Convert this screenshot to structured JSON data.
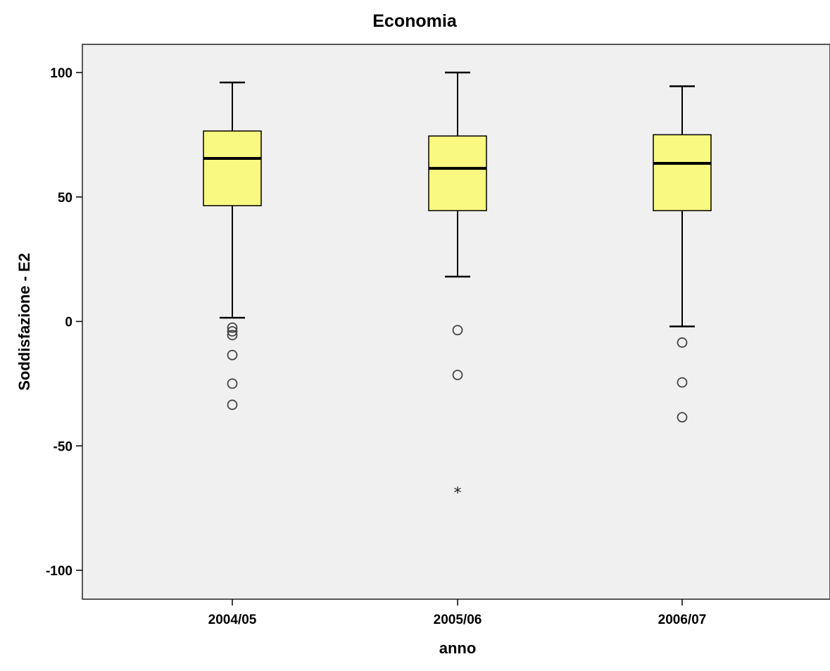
{
  "chart_data": {
    "type": "box",
    "title": "Economia",
    "xlabel": "anno",
    "ylabel": "Soddisfazione - E2",
    "ylim": [
      -111,
      111
    ],
    "yticks": [
      -100,
      -50,
      0,
      50,
      100
    ],
    "grid": false,
    "colors": {
      "box_fill": "#f9f981",
      "plot_bg": "#f0f0f0",
      "stroke": "#000000",
      "outlier_stroke": "#444444"
    },
    "categories": [
      "2004/05",
      "2005/06",
      "2006/07"
    ],
    "boxes": [
      {
        "category": "2004/05",
        "whisker_low": 1.5,
        "q1": 46.5,
        "median": 65.5,
        "q3": 76.5,
        "whisker_high": 96,
        "outliers": [
          -2.5,
          -4,
          -5.5,
          -13.5,
          -25,
          -33.5
        ],
        "extremes": []
      },
      {
        "category": "2005/06",
        "whisker_low": 18,
        "q1": 44.5,
        "median": 61.5,
        "q3": 74.5,
        "whisker_high": 100,
        "outliers": [
          -3.5,
          -21.5
        ],
        "extremes": [
          -68.5
        ]
      },
      {
        "category": "2006/07",
        "whisker_low": -2,
        "q1": 44.5,
        "median": 63.5,
        "q3": 75,
        "whisker_high": 94.5,
        "outliers": [
          -8.5,
          -24.5,
          -38.5
        ],
        "extremes": []
      }
    ]
  }
}
